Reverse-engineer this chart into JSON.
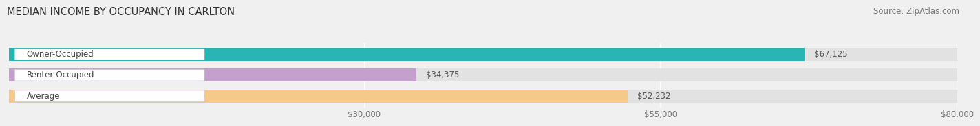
{
  "title": "MEDIAN INCOME BY OCCUPANCY IN CARLTON",
  "source": "Source: ZipAtlas.com",
  "categories": [
    "Owner-Occupied",
    "Renter-Occupied",
    "Average"
  ],
  "values": [
    67125,
    34375,
    52232
  ],
  "bar_colors": [
    "#2ab5b5",
    "#c4a0cc",
    "#f5c98a"
  ],
  "bar_labels": [
    "$67,125",
    "$34,375",
    "$52,232"
  ],
  "label_colors": [
    "#555555",
    "#555555",
    "#777777"
  ],
  "xlim": [
    0,
    80000
  ],
  "xticks": [
    30000,
    55000,
    80000
  ],
  "xtick_labels": [
    "$30,000",
    "$55,000",
    "$80,000"
  ],
  "background_color": "#f0f0f0",
  "bar_bg_color": "#e2e2e2",
  "title_fontsize": 10.5,
  "source_fontsize": 8.5,
  "label_fontsize": 8.5,
  "tick_fontsize": 8.5
}
